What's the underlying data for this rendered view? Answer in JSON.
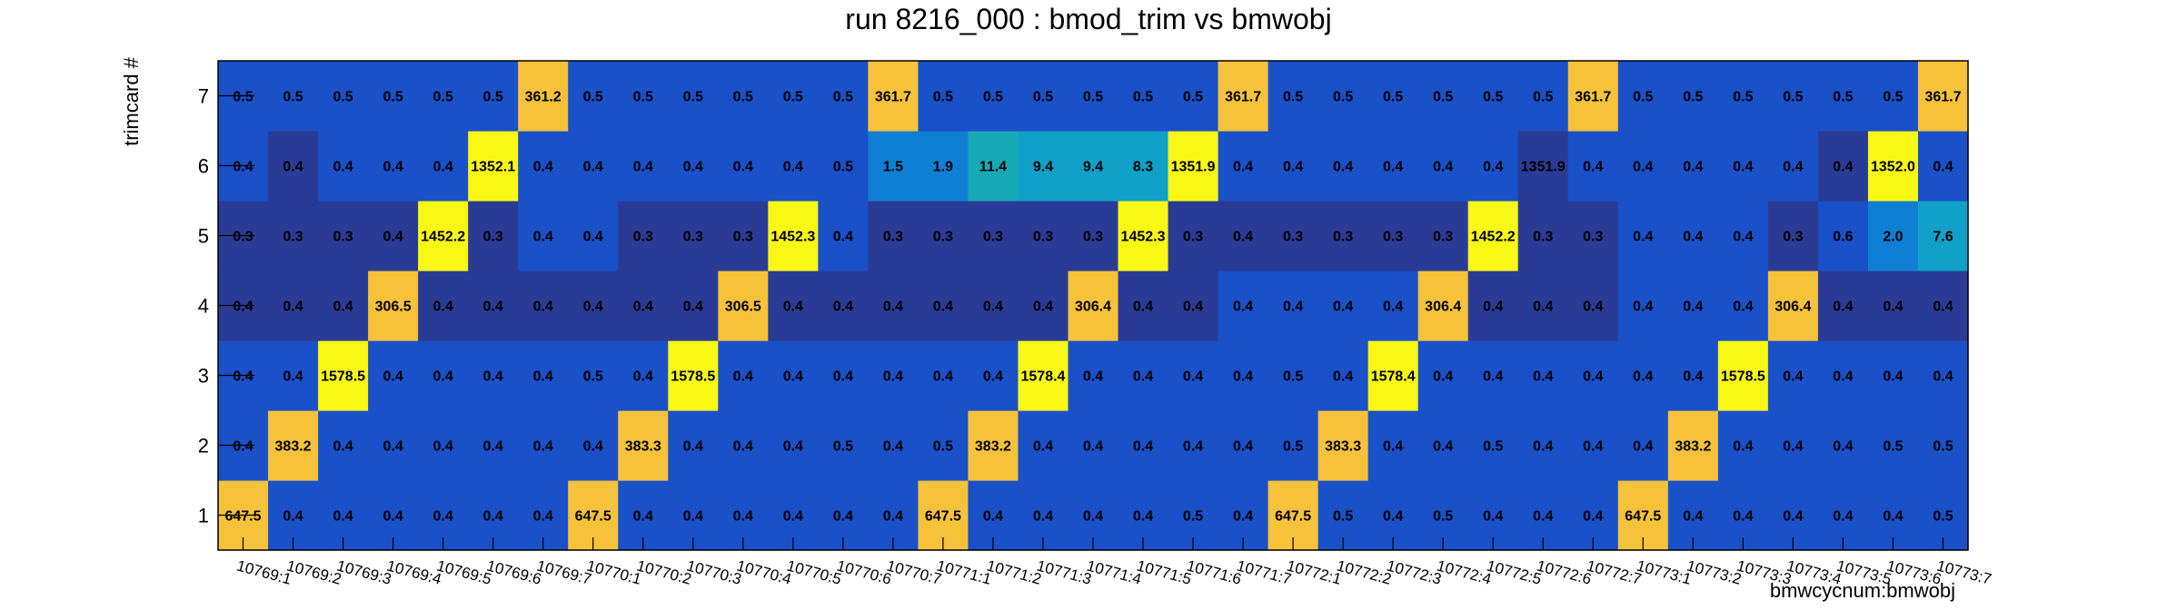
{
  "chart_data": {
    "type": "heatmap",
    "title": "run 8216_000 : bmod_trim vs bmwobj",
    "xlabel": "bmwcycnum:bmwobj",
    "ylabel": "trimcard #",
    "x_categories": [
      "10769:1",
      "10769:2",
      "10769:3",
      "10769:4",
      "10769:5",
      "10769:6",
      "10769:7",
      "10770:1",
      "10770:2",
      "10770:3",
      "10770:4",
      "10770:5",
      "10770:6",
      "10770:7",
      "10771:1",
      "10771:2",
      "10771:3",
      "10771:4",
      "10771:5",
      "10771:6",
      "10771:7",
      "10772:1",
      "10772:2",
      "10772:3",
      "10772:4",
      "10772:5",
      "10772:6",
      "10772:7",
      "10773:1",
      "10773:2",
      "10773:3",
      "10773:4",
      "10773:5",
      "10773:6",
      "10773:7"
    ],
    "y_categories": [
      "1",
      "2",
      "3",
      "4",
      "5",
      "6",
      "7"
    ],
    "values": [
      [
        647.5,
        0.4,
        0.4,
        0.4,
        0.4,
        0.4,
        0.4,
        647.5,
        0.4,
        0.4,
        0.4,
        0.4,
        0.4,
        0.4,
        647.5,
        0.4,
        0.4,
        0.4,
        0.4,
        0.5,
        0.4,
        647.5,
        0.5,
        0.4,
        0.5,
        0.4,
        0.4,
        0.4,
        647.5,
        0.4,
        0.4,
        0.4,
        0.4,
        0.4,
        0.5
      ],
      [
        0.4,
        383.2,
        0.4,
        0.4,
        0.4,
        0.4,
        0.4,
        0.4,
        383.3,
        0.4,
        0.4,
        0.4,
        0.5,
        0.4,
        0.5,
        383.2,
        0.4,
        0.4,
        0.4,
        0.4,
        0.4,
        0.5,
        383.3,
        0.4,
        0.4,
        0.5,
        0.4,
        0.4,
        0.4,
        383.2,
        0.4,
        0.4,
        0.4,
        0.5,
        0.5
      ],
      [
        0.4,
        0.4,
        1578.5,
        0.4,
        0.4,
        0.4,
        0.4,
        0.5,
        0.4,
        1578.5,
        0.4,
        0.4,
        0.4,
        0.4,
        0.4,
        0.4,
        1578.4,
        0.4,
        0.4,
        0.4,
        0.4,
        0.5,
        0.4,
        1578.4,
        0.4,
        0.4,
        0.4,
        0.4,
        0.4,
        0.4,
        1578.5,
        0.4,
        0.4,
        0.4,
        0.4
      ],
      [
        0.4,
        0.4,
        0.4,
        306.5,
        0.4,
        0.4,
        0.4,
        0.4,
        0.4,
        0.4,
        306.5,
        0.4,
        0.4,
        0.4,
        0.4,
        0.4,
        0.4,
        306.4,
        0.4,
        0.4,
        0.4,
        0.4,
        0.4,
        0.4,
        306.4,
        0.4,
        0.4,
        0.4,
        0.4,
        0.4,
        0.4,
        306.4,
        0.4,
        0.4,
        0.4
      ],
      [
        0.3,
        0.3,
        0.3,
        0.4,
        1452.2,
        0.3,
        0.4,
        0.4,
        0.3,
        0.3,
        0.3,
        1452.3,
        0.4,
        0.3,
        0.3,
        0.3,
        0.3,
        0.3,
        1452.3,
        0.3,
        0.4,
        0.3,
        0.3,
        0.3,
        0.3,
        1452.2,
        0.3,
        0.3,
        0.4,
        0.4,
        0.4,
        0.3,
        0.6,
        2.0,
        7.6
      ],
      [
        0.4,
        0.4,
        0.4,
        0.4,
        0.4,
        1352.1,
        0.4,
        0.4,
        0.4,
        0.4,
        0.4,
        0.4,
        0.5,
        1.5,
        1.9,
        11.4,
        9.4,
        9.4,
        8.3,
        1351.9,
        0.4,
        0.4,
        0.4,
        0.4,
        0.4,
        0.4,
        1351.9,
        0.4,
        0.4,
        0.4,
        0.4,
        0.4,
        0.4,
        1352.0,
        0.4
      ],
      [
        0.5,
        0.5,
        0.5,
        0.5,
        0.5,
        0.5,
        361.2,
        0.5,
        0.5,
        0.5,
        0.5,
        0.5,
        0.5,
        361.7,
        0.5,
        0.5,
        0.5,
        0.5,
        0.5,
        0.5,
        361.7,
        0.5,
        0.5,
        0.5,
        0.5,
        0.5,
        0.5,
        361.7,
        0.5,
        0.5,
        0.5,
        0.5,
        0.5,
        0.5,
        361.7
      ]
    ],
    "colors": {
      "high_yellow": "#f9f814",
      "mid_orange": "#f6c23a",
      "low_blue": "#1a50c8",
      "lowest_navy": "#2a3b96",
      "tint_light": "#0f7fd4",
      "tint_teal": "#17aab6",
      "tint_cyan": "#10a0c8"
    },
    "grid": false,
    "legend": "none"
  }
}
